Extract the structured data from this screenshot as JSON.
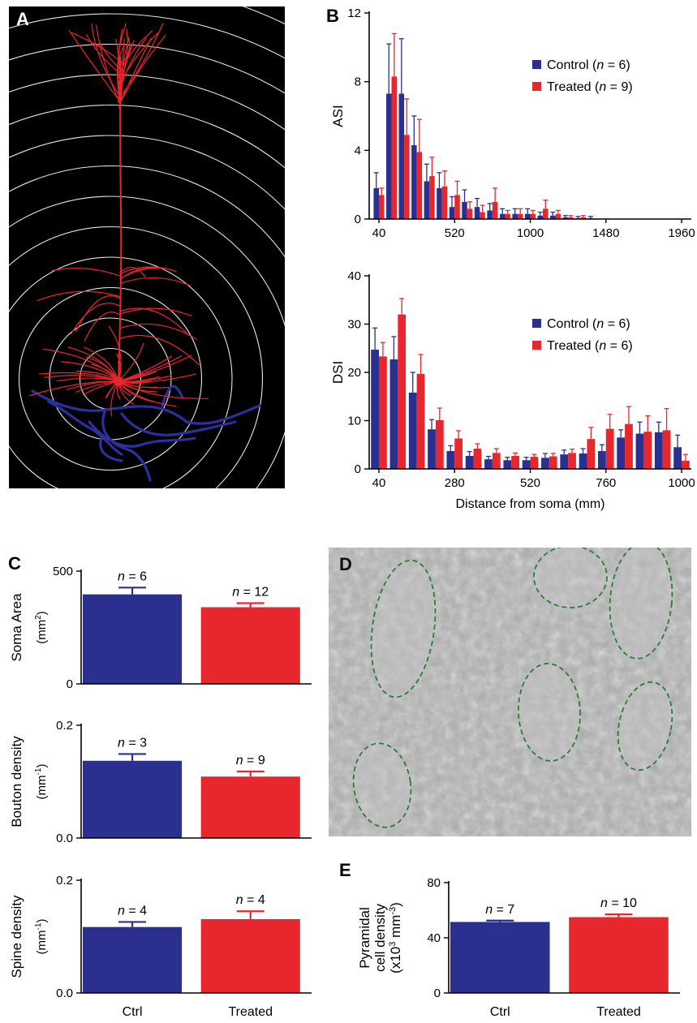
{
  "panels": {
    "A": {
      "letter": "A",
      "colors": {
        "background": "#000000",
        "rings": "#ffffff",
        "dendrites": "#e8262d",
        "axon": "#2c2f9e"
      }
    },
    "B": {
      "letter": "B",
      "charts": [
        {
          "type": "bar",
          "ylabel": "ASI",
          "ylim": [
            0,
            12
          ],
          "yticks": [
            "0",
            "4",
            "8",
            "12"
          ],
          "xticks": [
            "40",
            "520",
            "1000",
            "1480",
            "1960"
          ],
          "xlim": [
            40,
            1960
          ],
          "legend": [
            {
              "label": "Control (",
              "n": "n",
              "rest": " = 6)",
              "color": "#2b2f8f"
            },
            {
              "label": "Treated (",
              "n": "n",
              "rest": " = 9)",
              "color": "#e8262d"
            }
          ],
          "x": [
            40,
            120,
            200,
            280,
            360,
            440,
            520,
            600,
            680,
            760,
            840,
            920,
            1000,
            1080,
            1160,
            1240,
            1320,
            1400,
            1480,
            1560,
            1640,
            1720,
            1800,
            1880,
            1960
          ],
          "series": [
            {
              "name": "Control",
              "color": "#2b2f8f",
              "values": [
                1.8,
                7.3,
                7.3,
                4.3,
                2.2,
                1.8,
                0.7,
                1.0,
                0.7,
                0.5,
                0.3,
                0.3,
                0.3,
                0.2,
                0.2,
                0.1,
                0.05,
                0.05,
                0,
                0,
                0,
                0,
                0,
                0,
                0
              ],
              "errors": [
                0.9,
                2.9,
                3.2,
                1.7,
                1.0,
                0.9,
                0.6,
                0.7,
                0.5,
                0.4,
                0.3,
                0.3,
                0.3,
                0.2,
                0.2,
                0.1,
                0.1,
                0.1,
                0,
                0,
                0,
                0,
                0,
                0,
                0
              ]
            },
            {
              "name": "Treated",
              "color": "#e8262d",
              "values": [
                1.4,
                8.3,
                4.9,
                3.9,
                2.5,
                1.9,
                1.4,
                0.6,
                0.4,
                1.0,
                0.3,
                0.3,
                0.3,
                0.6,
                0.3,
                0.1,
                0.1,
                0,
                0,
                0,
                0,
                0,
                0,
                0,
                0
              ],
              "errors": [
                0.4,
                2.5,
                2.1,
                1.9,
                1.1,
                0.9,
                0.8,
                0.4,
                0.4,
                0.8,
                0.2,
                0.3,
                0.2,
                0.5,
                0.2,
                0.1,
                0.1,
                0,
                0,
                0,
                0,
                0,
                0,
                0,
                0
              ]
            }
          ]
        },
        {
          "type": "bar",
          "ylabel": "DSI",
          "xlabel": "Distance from soma (mm)",
          "ylim": [
            0,
            40
          ],
          "yticks": [
            "0",
            "10",
            "20",
            "30",
            "40"
          ],
          "xticks": [
            "40",
            "280",
            "520",
            "760",
            "1000"
          ],
          "xlim": [
            40,
            1000
          ],
          "legend": [
            {
              "label": "Control (",
              "n": "n",
              "rest": " = 6)",
              "color": "#2b2f8f"
            },
            {
              "label": "Treated (",
              "n": "n",
              "rest": " = 6)",
              "color": "#e8262d"
            }
          ],
          "x": [
            40,
            100,
            160,
            220,
            280,
            340,
            400,
            460,
            520,
            580,
            640,
            700,
            760,
            820,
            880,
            940,
            1000
          ],
          "series": [
            {
              "name": "Control",
              "color": "#2b2f8f",
              "values": [
                24.7,
                22.7,
                15.8,
                8.2,
                3.7,
                2.7,
                2.0,
                1.8,
                1.8,
                2.3,
                3.0,
                3.2,
                3.7,
                6.5,
                7.3,
                7.6,
                4.5
              ],
              "errors": [
                4.5,
                4.7,
                4.2,
                2.0,
                1.1,
                0.9,
                0.6,
                0.6,
                0.6,
                0.9,
                0.9,
                1.0,
                1.3,
                1.6,
                2.4,
                2.1,
                2.5
              ]
            },
            {
              "name": "Treated",
              "color": "#e8262d",
              "values": [
                23.3,
                32.0,
                19.7,
                10.1,
                6.3,
                4.2,
                3.3,
                2.7,
                2.5,
                2.6,
                3.3,
                6.2,
                8.3,
                9.3,
                7.7,
                8.0,
                1.7
              ],
              "errors": [
                2.9,
                3.3,
                4.0,
                2.5,
                1.6,
                1.0,
                0.9,
                0.6,
                0.5,
                0.6,
                0.8,
                2.4,
                3.0,
                3.6,
                3.3,
                4.5,
                1.3
              ]
            }
          ]
        }
      ]
    },
    "C": {
      "letter": "C",
      "categories": [
        "Ctrl",
        "Treated"
      ],
      "charts": [
        {
          "type": "bar",
          "ylabel": "Soma Area",
          "unit_base": "(mm",
          "unit_sup": "2",
          "unit_close": ")",
          "ylim": [
            0,
            500
          ],
          "yticks": [
            "0",
            "500"
          ],
          "values": [
            397,
            340
          ],
          "errors": [
            30,
            18
          ],
          "n_labels": [
            "= 6",
            "= 12"
          ],
          "colors": [
            "#2b2f8f",
            "#e8262d"
          ]
        },
        {
          "type": "bar",
          "ylabel": "Bouton density",
          "unit_base": "(mm",
          "unit_sup": "-1",
          "unit_close": ")",
          "ylim": [
            0,
            0.2
          ],
          "yticks": [
            "0.0",
            "0.2"
          ],
          "values": [
            0.137,
            0.109
          ],
          "errors": [
            0.012,
            0.009
          ],
          "n_labels": [
            "= 3",
            "= 9"
          ],
          "colors": [
            "#2b2f8f",
            "#e8262d"
          ]
        },
        {
          "type": "bar",
          "ylabel": "Spine density",
          "unit_base": "(mm",
          "unit_sup": "-1",
          "unit_close": ")",
          "ylim": [
            0,
            0.2
          ],
          "yticks": [
            "0.0",
            "0.2"
          ],
          "values": [
            0.117,
            0.131
          ],
          "errors": [
            0.009,
            0.014
          ],
          "n_labels": [
            "= 4",
            "= 4"
          ],
          "colors": [
            "#2b2f8f",
            "#e8262d"
          ]
        }
      ]
    },
    "D": {
      "letter": "D"
    },
    "E": {
      "letter": "E",
      "categories": [
        "Ctrl",
        "Treated"
      ],
      "chart": {
        "type": "bar",
        "ylabel_line1": "Pyramidal",
        "ylabel_line2": "cell density",
        "ylabel_line3_a": "(x10",
        "ylabel_line3_sup1": "3",
        "ylabel_line3_b": " mm",
        "ylabel_line3_sup2": "-3",
        "ylabel_line3_c": ")",
        "ylim": [
          0,
          80
        ],
        "yticks": [
          "0",
          "40",
          "80"
        ],
        "values": [
          51.5,
          55.0
        ],
        "errors": [
          1.0,
          2.0
        ],
        "n_labels": [
          "= 7",
          "= 10"
        ],
        "colors": [
          "#2b2f8f",
          "#e8262d"
        ]
      }
    }
  }
}
